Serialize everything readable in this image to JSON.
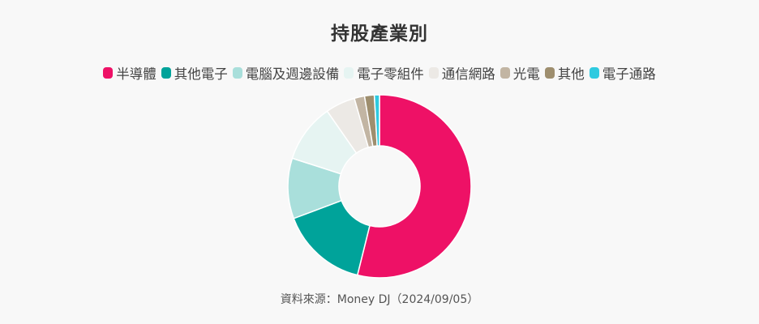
{
  "chart_data": {
    "type": "pie",
    "title": "持股產業別",
    "categories": [
      "半導體",
      "其他電子",
      "電腦及週邊設備",
      "電子零組件",
      "通信網路",
      "光電",
      "其他",
      "電子通路"
    ],
    "values": [
      53.5,
      15.3,
      10.6,
      10.3,
      5.2,
      1.8,
      1.7,
      0.9
    ],
    "unit": "%",
    "colors": [
      "#ee1166",
      "#00a39a",
      "#a9dfdb",
      "#e6f4f2",
      "#ece9e5",
      "#c2b5a3",
      "#9e8e6e",
      "#2ecae0"
    ],
    "donut": true,
    "legend_position": "top",
    "source": "資料來源：Money DJ（2024/09/05）"
  }
}
